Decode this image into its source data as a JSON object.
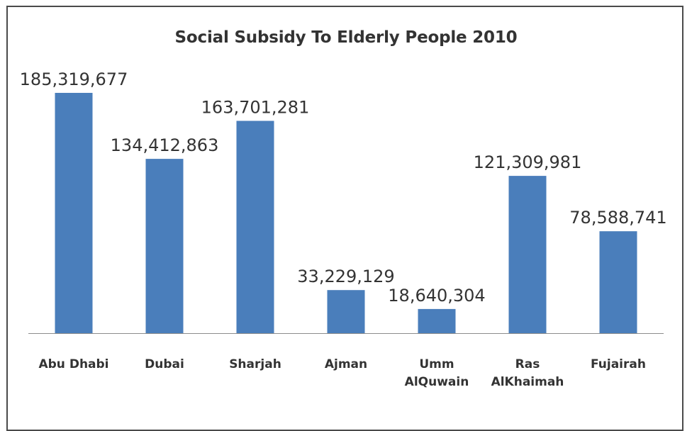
{
  "chart_data": {
    "type": "bar",
    "title": "Social Subsidy To Elderly People 2010",
    "xlabel": "",
    "ylabel": "",
    "categories": [
      [
        "Abu Dhabi"
      ],
      [
        "Dubai"
      ],
      [
        "Sharjah"
      ],
      [
        "Ajman"
      ],
      [
        "Umm",
        "AlQuwain"
      ],
      [
        "Ras",
        "AlKhaimah"
      ],
      [
        "Fujairah"
      ]
    ],
    "values": [
      185319677,
      134412863,
      163701281,
      33229129,
      18640304,
      121309981,
      78588741
    ],
    "data_labels": [
      "185,319,677",
      "134,412,863",
      "163,701,281",
      "33,229,129",
      "18,640,304",
      "121,309,981",
      "78,588,741"
    ],
    "ylim": [
      0,
      185319677
    ],
    "grid": false,
    "legend": "none",
    "colors": {
      "bar": "#4a7ebb",
      "text": "#333333",
      "axis": "#8c8c8c",
      "border": "#4a4a4a"
    }
  }
}
